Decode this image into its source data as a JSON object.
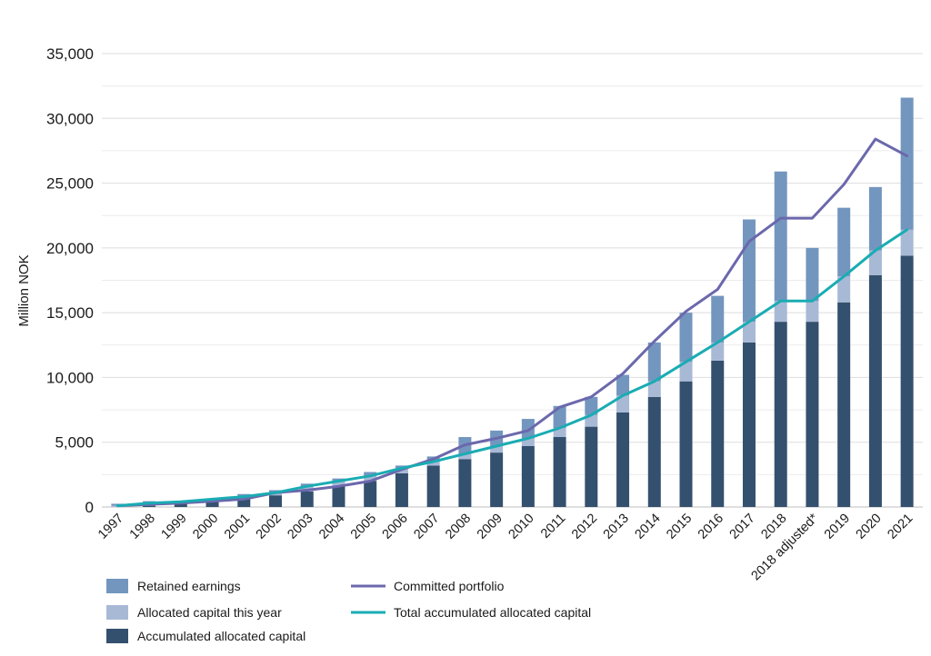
{
  "chart_data": {
    "type": "bar",
    "ylabel": "Million NOK",
    "ylim": [
      0,
      35000
    ],
    "yticks": [
      0,
      5000,
      10000,
      15000,
      20000,
      25000,
      30000,
      35000
    ],
    "ytick_labels": [
      "0",
      "5,000",
      "10,000",
      "15,000",
      "20,000",
      "25,000",
      "30,000",
      "35,000"
    ],
    "grid": true,
    "stacked": true,
    "legend_position": "bottom-left",
    "categories": [
      "1997",
      "1998",
      "1999",
      "2000",
      "2001",
      "2002",
      "2003",
      "2004",
      "2005",
      "2006",
      "2007",
      "2008",
      "2009",
      "2010",
      "2011",
      "2012",
      "2013",
      "2014",
      "2015",
      "2016",
      "2017",
      "2018",
      "2018 adjusted*",
      "2019",
      "2020",
      "2021"
    ],
    "series": [
      {
        "name": "Accumulated allocated capital",
        "kind": "bar",
        "color": "#34506f",
        "values": [
          0,
          100,
          300,
          400,
          600,
          900,
          1200,
          1600,
          2000,
          2600,
          3200,
          3700,
          4200,
          4700,
          5400,
          6200,
          7300,
          8500,
          9700,
          11300,
          12700,
          14300,
          14300,
          15800,
          17900,
          19400
        ]
      },
      {
        "name": "Allocated capital this year",
        "kind": "bar",
        "color": "#a8b9d6",
        "values": [
          100,
          200,
          100,
          200,
          200,
          200,
          400,
          400,
          400,
          400,
          300,
          400,
          500,
          600,
          700,
          900,
          1300,
          1200,
          1500,
          1400,
          1600,
          1600,
          1600,
          2000,
          1900,
          2000
        ]
      },
      {
        "name": "Retained earnings",
        "kind": "bar",
        "color": "#7396bf",
        "values": [
          150,
          150,
          0,
          0,
          200,
          200,
          200,
          200,
          300,
          200,
          400,
          1300,
          1200,
          1500,
          1700,
          1400,
          1600,
          3000,
          3800,
          3600,
          7900,
          10000,
          4100,
          5300,
          4900,
          10200
        ]
      },
      {
        "name": "Committed portfolio",
        "kind": "line",
        "color": "#6b68ac",
        "values": [
          100,
          200,
          300,
          450,
          600,
          1100,
          1300,
          1600,
          2000,
          2900,
          3700,
          4800,
          5300,
          5900,
          7700,
          8500,
          10300,
          12800,
          15100,
          16800,
          20500,
          22300,
          22300,
          24900,
          28400,
          27100
        ]
      },
      {
        "name": "Total accumulated allocated capital",
        "kind": "line",
        "color": "#1aacb3",
        "values": [
          100,
          300,
          400,
          600,
          800,
          1100,
          1600,
          2000,
          2400,
          3000,
          3500,
          4100,
          4700,
          5300,
          6100,
          7100,
          8600,
          9700,
          11200,
          12700,
          14300,
          15900,
          15900,
          17800,
          19800,
          21400
        ]
      }
    ],
    "legend": [
      {
        "name": "Retained earnings",
        "color": "#7396bf",
        "shape": "box"
      },
      {
        "name": "Allocated capital this year",
        "color": "#a8b9d6",
        "shape": "box"
      },
      {
        "name": "Accumulated allocated capital",
        "color": "#34506f",
        "shape": "box"
      },
      {
        "name": "Committed portfolio",
        "color": "#6b68ac",
        "shape": "line"
      },
      {
        "name": "Total accumulated allocated capital",
        "color": "#1aacb3",
        "shape": "line"
      }
    ]
  }
}
